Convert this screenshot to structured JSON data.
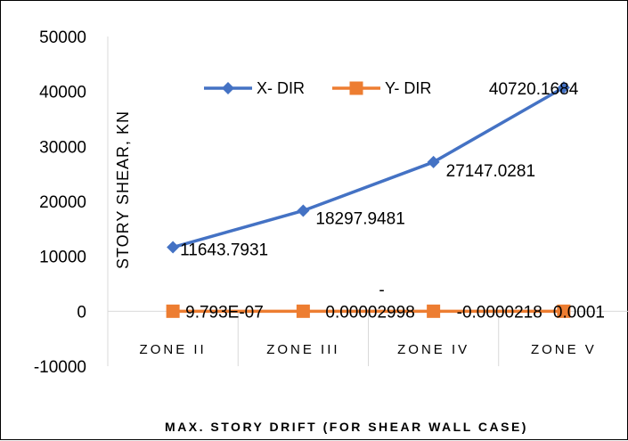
{
  "chart_data": {
    "type": "line",
    "title": "",
    "xlabel": "MAX. STORY DRIFT (FOR SHEAR WALL CASE)",
    "ylabel": "STORY SHEAR, KN",
    "categories": [
      "ZONE II",
      "ZONE III",
      "ZONE IV",
      "ZONE V"
    ],
    "ylim": [
      -10000,
      50000
    ],
    "yticks": [
      "-10000",
      "0",
      "10000",
      "20000",
      "30000",
      "40000",
      "50000"
    ],
    "grid": "vertical category separators",
    "legend_position": "top-left inside plot",
    "series": [
      {
        "name": "X- DIR",
        "color": "#4472C4",
        "marker": "diamond",
        "values": [
          11643.7931,
          18297.9481,
          27147.0281,
          40720.1684
        ],
        "labels": [
          "11643.7931",
          "18297.9481",
          "27147.0281",
          "40720.1684"
        ]
      },
      {
        "name": "Y- DIR",
        "color": "#ED7D31",
        "marker": "square",
        "values": [
          9.793e-07,
          -2.998e-05,
          -2.18e-05,
          0.0001
        ],
        "labels": [
          "9.793E-07",
          "-\n0.00002998",
          "-0.0000218",
          "0.0001"
        ]
      }
    ]
  }
}
